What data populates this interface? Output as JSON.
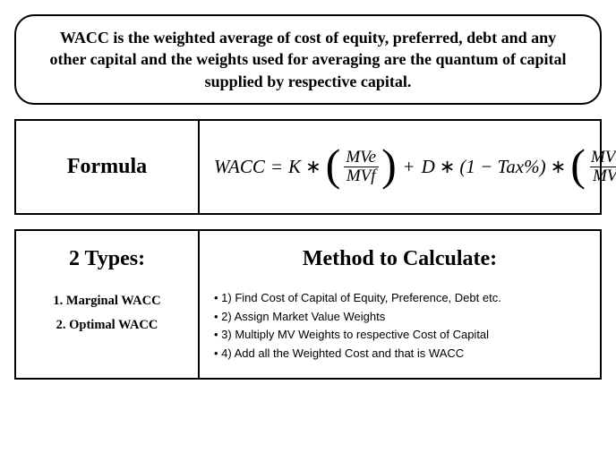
{
  "definition": "WACC is the weighted average of cost of equity, preferred, debt and any other capital and the weights used for averaging are the quantum of capital supplied by respective capital.",
  "formula": {
    "label": "Formula",
    "lhs": "WACC",
    "eq": "=",
    "k": "K",
    "star": "∗",
    "lp": "(",
    "rp": ")",
    "plus": "+",
    "d": "D",
    "taxterm": "(1 − Tax%)",
    "mve": "MVe",
    "mvf": "MVf",
    "mvd": "MVd"
  },
  "types": {
    "title": "2 Types:",
    "items": [
      "1. Marginal WACC",
      "2. Optimal WACC"
    ]
  },
  "method": {
    "title": "Method to Calculate:",
    "steps": [
      "1) Find Cost of Capital of Equity, Preference, Debt etc.",
      "2) Assign Market Value Weights",
      "3) Multiply MV Weights to respective Cost of Capital",
      "4) Add all the Weighted Cost and that is WACC"
    ]
  }
}
